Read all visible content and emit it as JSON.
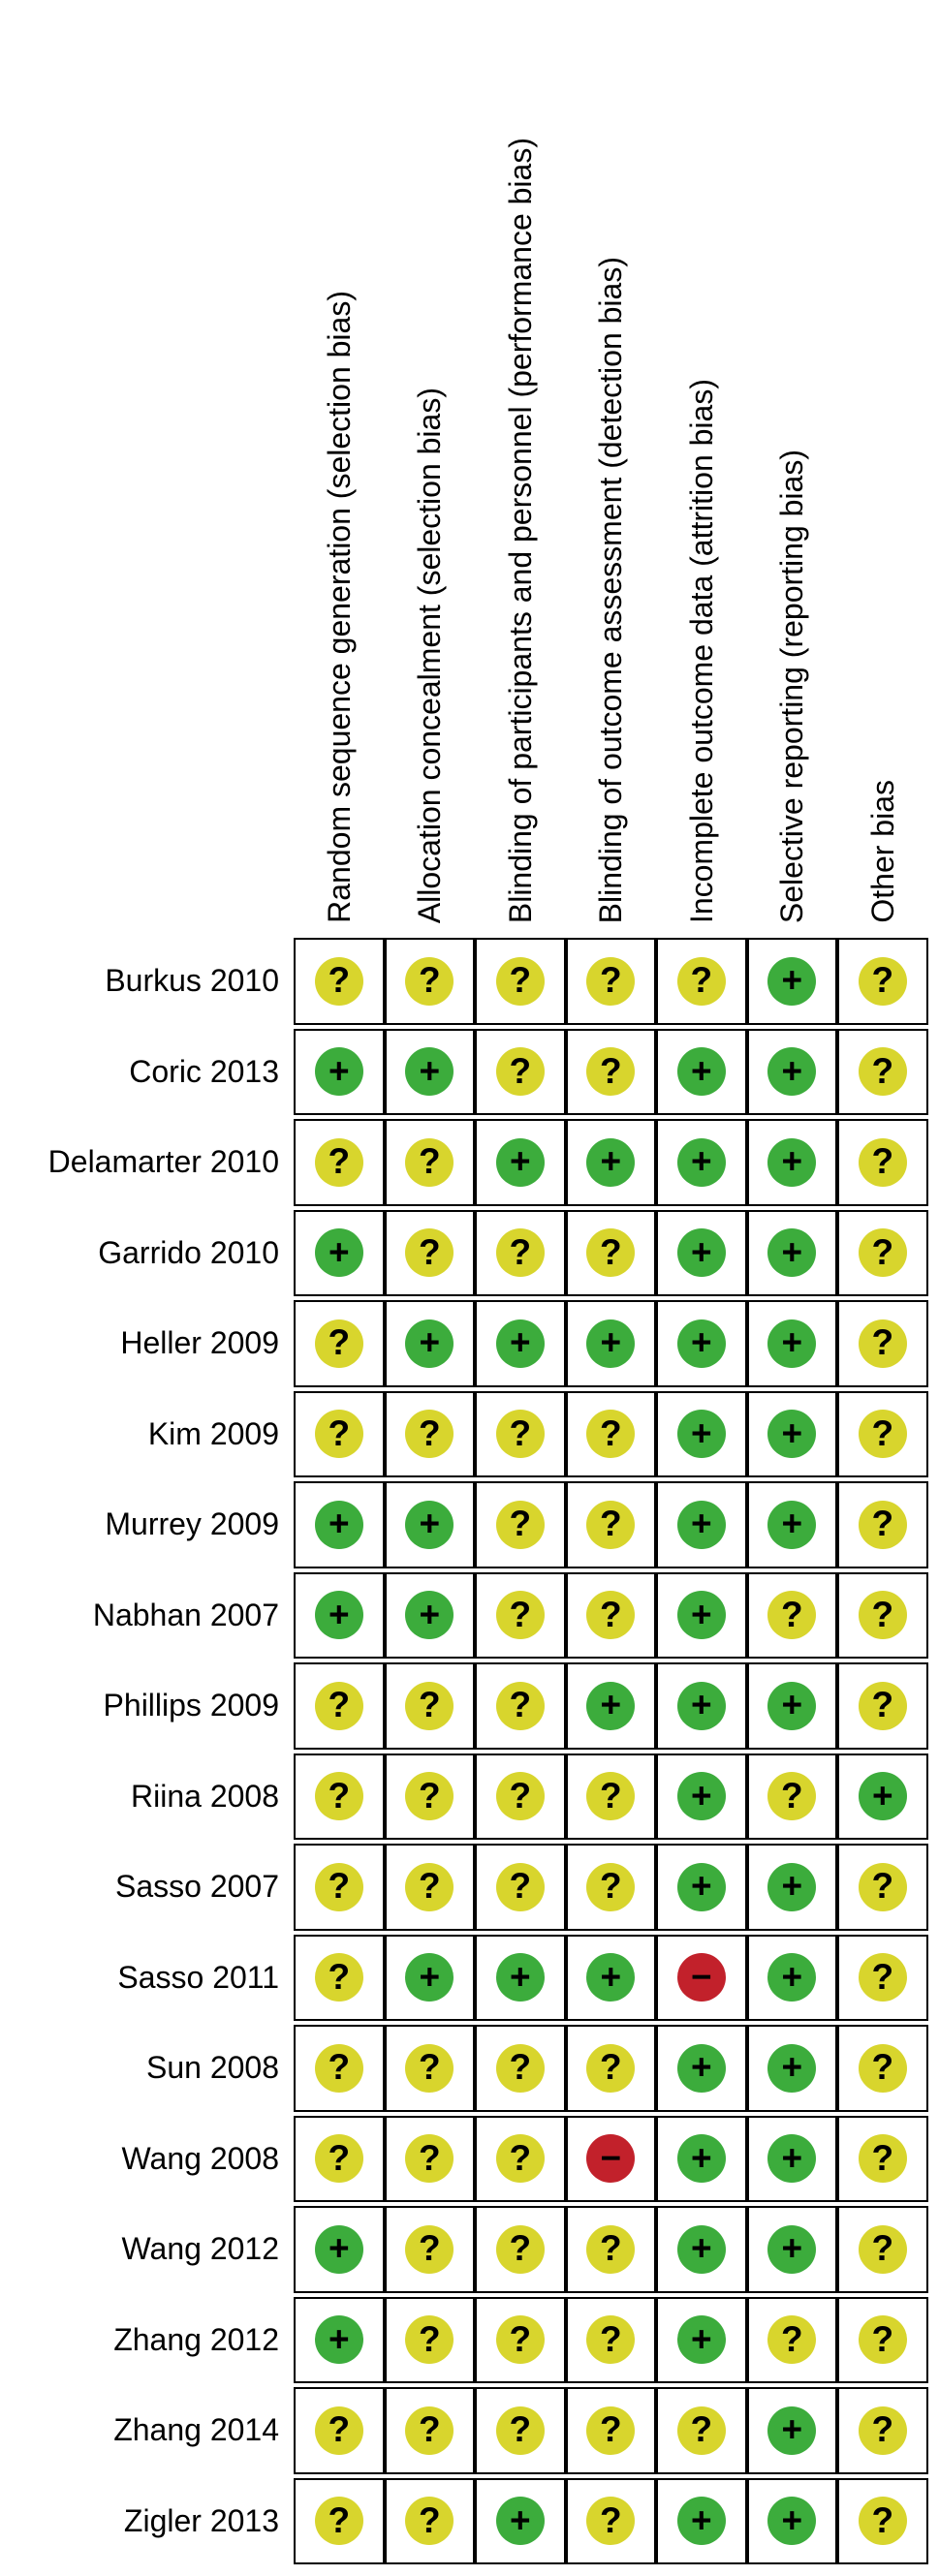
{
  "figure": {
    "kind": "risk-of-bias-summary-matrix"
  },
  "chart_data": {
    "type": "heatmap",
    "title": "",
    "legend_position": "none",
    "grid": "on",
    "columns": [
      "Random sequence generation (selection bias)",
      "Allocation concealment (selection bias)",
      "Blinding of participants and personnel (performance bias)",
      "Blinding of outcome assessment (detection bias)",
      "Incomplete outcome data (attrition bias)",
      "Selective reporting (reporting bias)",
      "Other bias"
    ],
    "rows": [
      "Burkus 2010",
      "Coric 2013",
      "Delamarter 2010",
      "Garrido 2010",
      "Heller 2009",
      "Kim 2009",
      "Murrey 2009",
      "Nabhan 2007",
      "Phillips 2009",
      "Riina 2008",
      "Sasso 2007",
      "Sasso 2011",
      "Sun 2008",
      "Wang 2008",
      "Wang 2012",
      "Zhang 2012",
      "Zhang 2014",
      "Zigler 2013"
    ],
    "values": [
      [
        "?",
        "?",
        "?",
        "?",
        "?",
        "+",
        "?"
      ],
      [
        "+",
        "+",
        "?",
        "?",
        "+",
        "+",
        "?"
      ],
      [
        "?",
        "?",
        "+",
        "+",
        "+",
        "+",
        "?"
      ],
      [
        "+",
        "?",
        "?",
        "?",
        "+",
        "+",
        "?"
      ],
      [
        "?",
        "+",
        "+",
        "+",
        "+",
        "+",
        "?"
      ],
      [
        "?",
        "?",
        "?",
        "?",
        "+",
        "+",
        "?"
      ],
      [
        "+",
        "+",
        "?",
        "?",
        "+",
        "+",
        "?"
      ],
      [
        "+",
        "+",
        "?",
        "?",
        "+",
        "?",
        "?"
      ],
      [
        "?",
        "?",
        "?",
        "+",
        "+",
        "+",
        "?"
      ],
      [
        "?",
        "?",
        "?",
        "?",
        "+",
        "?",
        "+"
      ],
      [
        "?",
        "?",
        "?",
        "?",
        "+",
        "+",
        "?"
      ],
      [
        "?",
        "+",
        "+",
        "+",
        "−",
        "+",
        "?"
      ],
      [
        "?",
        "?",
        "?",
        "?",
        "+",
        "+",
        "?"
      ],
      [
        "?",
        "?",
        "?",
        "−",
        "+",
        "+",
        "?"
      ],
      [
        "+",
        "?",
        "?",
        "?",
        "+",
        "+",
        "?"
      ],
      [
        "+",
        "?",
        "?",
        "?",
        "+",
        "?",
        "?"
      ],
      [
        "?",
        "?",
        "?",
        "?",
        "?",
        "+",
        "?"
      ],
      [
        "?",
        "?",
        "+",
        "?",
        "+",
        "+",
        "?"
      ]
    ],
    "cell_colors": {
      "+": "#3cac3c",
      "?": "#d8d52d",
      "−": "#c2212b"
    },
    "symbol_color": "#000000",
    "grid_color": "#000000",
    "background_color": "#ffffff"
  }
}
